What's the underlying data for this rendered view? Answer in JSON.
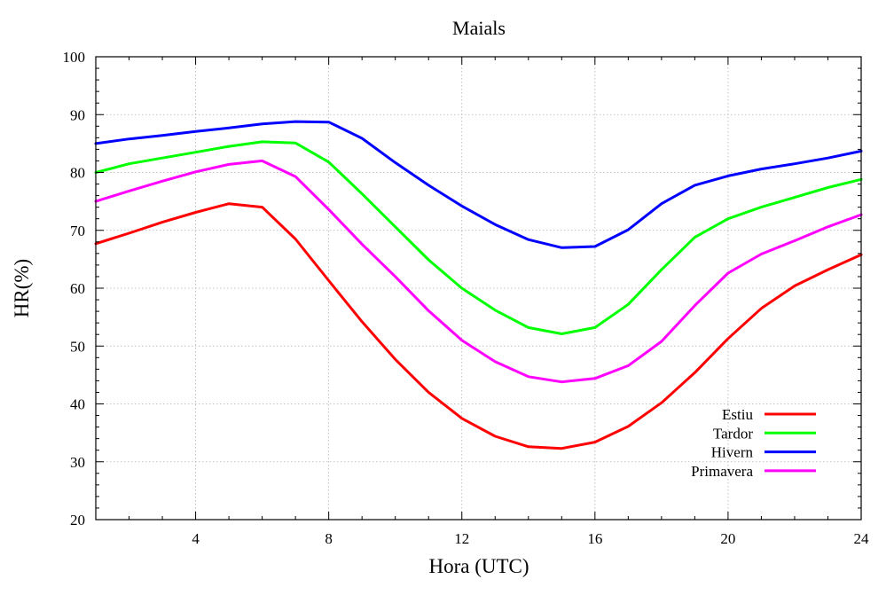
{
  "chart_data": {
    "type": "line",
    "title": "Maials",
    "xlabel": "Hora (UTC)",
    "ylabel": "HR(%)",
    "xlim": [
      1,
      24
    ],
    "ylim": [
      20,
      100
    ],
    "xticks": [
      4,
      8,
      12,
      16,
      20,
      24
    ],
    "yticks": [
      20,
      30,
      40,
      50,
      60,
      70,
      80,
      90,
      100
    ],
    "xtick_labels": [
      "4",
      "8",
      "12",
      "16",
      "20",
      "24"
    ],
    "ytick_labels": [
      "20",
      "30",
      "40",
      "50",
      "60",
      "70",
      "80",
      "90",
      "100"
    ],
    "grid": true,
    "legend_position": "bottom-right",
    "x": [
      1,
      2,
      3,
      4,
      5,
      6,
      7,
      8,
      9,
      10,
      11,
      12,
      13,
      14,
      15,
      16,
      17,
      18,
      19,
      20,
      21,
      22,
      23,
      24
    ],
    "series": [
      {
        "name": "Estiu",
        "color": "#ff0000",
        "values": [
          67.7,
          69.5,
          71.4,
          73.1,
          74.6,
          74.0,
          68.5,
          61.3,
          54.2,
          47.7,
          42.0,
          37.5,
          34.4,
          32.6,
          32.3,
          33.4,
          36.1,
          40.2,
          45.4,
          51.3,
          56.5,
          60.4,
          63.2,
          65.8
        ]
      },
      {
        "name": "Tardor",
        "color": "#00ff00",
        "values": [
          80.0,
          81.5,
          82.5,
          83.5,
          84.5,
          85.3,
          85.1,
          81.8,
          76.3,
          70.6,
          64.9,
          60.0,
          56.2,
          53.2,
          52.1,
          53.2,
          57.2,
          63.2,
          68.8,
          72.0,
          74.0,
          75.7,
          77.4,
          78.8
        ]
      },
      {
        "name": "Hivern",
        "color": "#0000ff",
        "values": [
          85.0,
          85.8,
          86.4,
          87.1,
          87.7,
          88.4,
          88.8,
          88.7,
          85.9,
          81.7,
          77.8,
          74.2,
          71.0,
          68.4,
          67.0,
          67.2,
          70.1,
          74.6,
          77.8,
          79.4,
          80.6,
          81.5,
          82.5,
          83.7
        ]
      },
      {
        "name": "Primavera",
        "color": "#ff00ff",
        "values": [
          75.0,
          76.8,
          78.5,
          80.1,
          81.4,
          82.0,
          79.3,
          73.6,
          67.6,
          62.0,
          56.1,
          51.0,
          47.3,
          44.7,
          43.8,
          44.4,
          46.6,
          50.8,
          57.0,
          62.6,
          65.9,
          68.2,
          70.6,
          72.7
        ]
      }
    ]
  }
}
